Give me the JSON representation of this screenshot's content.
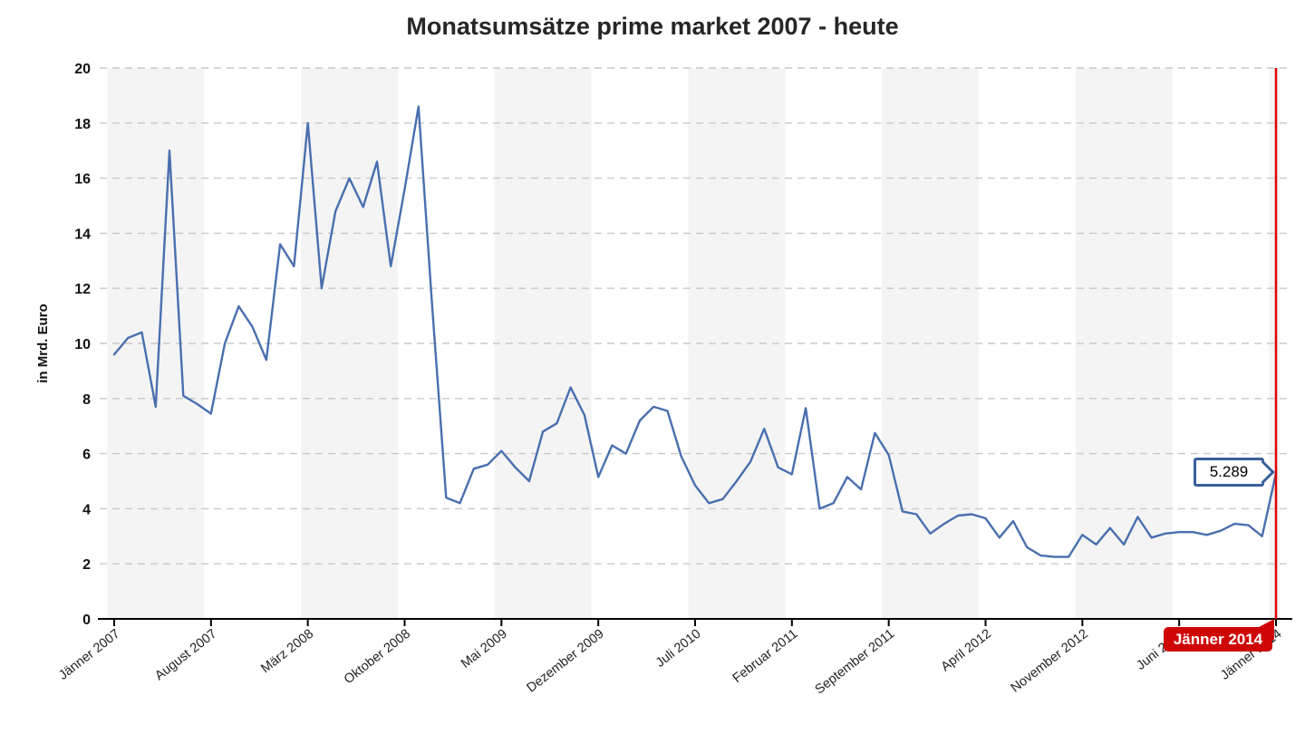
{
  "title": "Monatsumsätze prime market 2007 - heute",
  "y_axis": {
    "label": "in Mrd. Euro",
    "tick_labels": [
      "0",
      "2",
      "4",
      "6",
      "8",
      "10",
      "12",
      "14",
      "16",
      "18",
      "20"
    ]
  },
  "x_axis": {
    "tick_labels": [
      "Jänner 2007",
      "August 2007",
      "März 2008",
      "Oktober 2008",
      "Mai 2009",
      "Dezember 2009",
      "Juli 2010",
      "Februar 2011",
      "September 2011",
      "April 2012",
      "November 2012",
      "Juni 2013",
      "Jänner 2014"
    ],
    "months_per_tick": 7
  },
  "tooltip": {
    "value": "5.289"
  },
  "marker": {
    "label": "Jänner 2014"
  },
  "colors": {
    "series": "#4a6fae",
    "marker_line": "#e00000",
    "badge": "#cf0606",
    "tooltip_border": "#3a5f9b",
    "grid": "#c9c9c9",
    "band": "#f4f4f4",
    "axis": "#000000",
    "text": "#222222"
  },
  "chart_data": {
    "type": "line",
    "title": "Monatsumsätze prime market 2007 - heute",
    "xlabel": "",
    "ylabel": "in Mrd. Euro",
    "ylim": [
      0,
      20
    ],
    "grid": "horizontal-dashed",
    "x_start": "Jänner 2007",
    "x_end": "Jänner 2014",
    "x_tick_labels": [
      "Jänner 2007",
      "August 2007",
      "März 2008",
      "Oktober 2008",
      "Mai 2009",
      "Dezember 2009",
      "Juli 2010",
      "Februar 2011",
      "September 2011",
      "April 2012",
      "November 2012",
      "Juni 2013",
      "Jänner 2014"
    ],
    "x_tick_month_indices": [
      0,
      7,
      14,
      21,
      28,
      35,
      42,
      49,
      56,
      63,
      70,
      77,
      84
    ],
    "series": [
      {
        "name": "Monatsumsatz in Mrd. Euro",
        "values": [
          9.6,
          10.2,
          10.4,
          7.7,
          17.0,
          8.1,
          7.8,
          7.45,
          10.0,
          11.35,
          10.6,
          9.4,
          13.6,
          12.8,
          18.0,
          12.0,
          14.8,
          16.0,
          14.95,
          16.6,
          12.8,
          15.6,
          18.6,
          11.3,
          4.4,
          4.2,
          5.45,
          5.6,
          6.1,
          5.5,
          5.0,
          6.8,
          7.1,
          8.4,
          7.4,
          5.15,
          6.3,
          6.0,
          7.2,
          7.7,
          7.55,
          5.9,
          4.85,
          4.2,
          4.35,
          5.0,
          5.7,
          6.9,
          5.5,
          5.25,
          7.65,
          4.0,
          4.2,
          5.15,
          4.7,
          6.75,
          5.95,
          3.9,
          3.8,
          3.1,
          3.45,
          3.75,
          3.8,
          3.65,
          2.95,
          3.55,
          2.6,
          2.3,
          2.25,
          2.25,
          3.05,
          2.7,
          3.3,
          2.7,
          3.7,
          2.95,
          3.1,
          3.15,
          3.15,
          3.05,
          3.2,
          3.45,
          3.4,
          3.0,
          5.289
        ]
      }
    ],
    "annotations": [
      {
        "type": "vertical-line",
        "at_month_index": 84,
        "label": "Jänner 2014"
      },
      {
        "type": "value-callout",
        "at_month_index": 84,
        "text": "5.289"
      }
    ]
  }
}
